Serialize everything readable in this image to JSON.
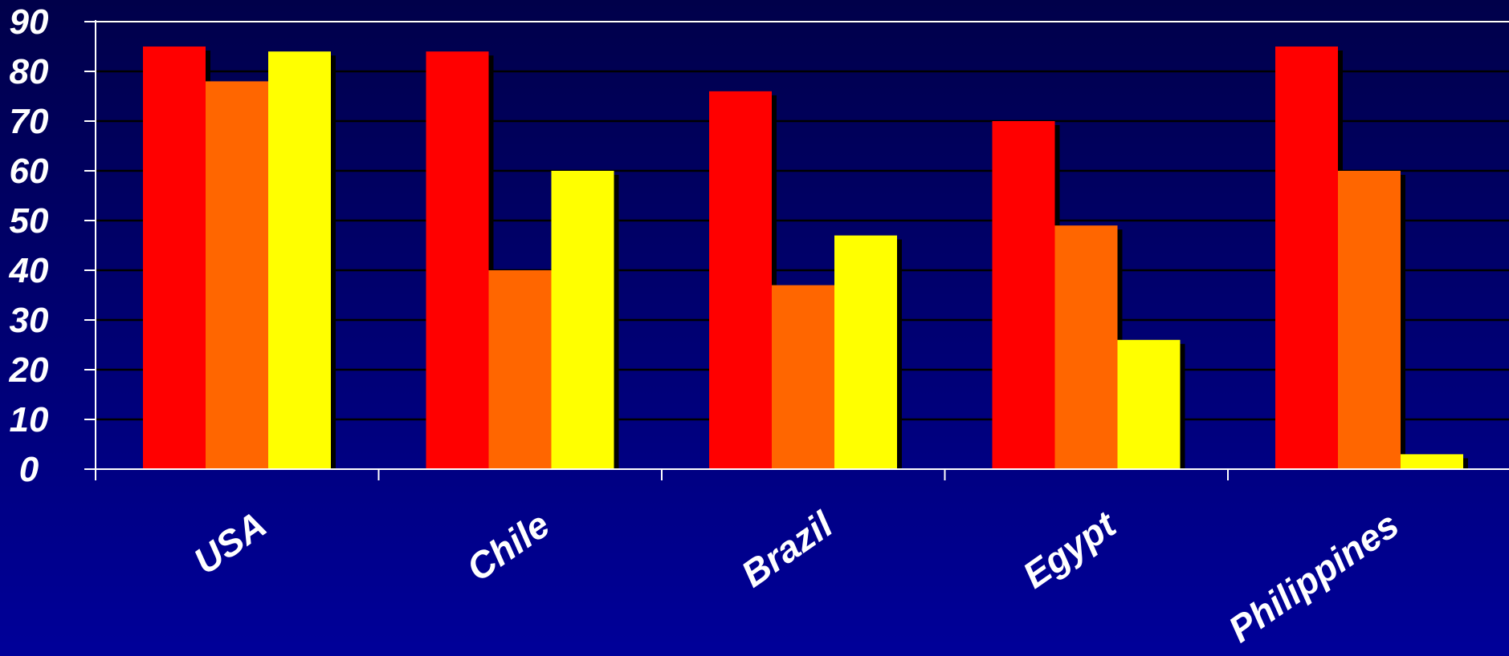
{
  "chart_data": {
    "type": "bar",
    "categories": [
      "USA",
      "Chile",
      "Brazil",
      "Egypt",
      "Philippines"
    ],
    "series": [
      {
        "color": "#ff0000",
        "values": [
          85,
          84,
          76,
          70,
          85
        ]
      },
      {
        "color": "#ff6600",
        "values": [
          78,
          40,
          37,
          49,
          60
        ]
      },
      {
        "color": "#ffff00",
        "values": [
          84,
          60,
          47,
          26,
          3
        ]
      }
    ],
    "ylim": [
      0,
      90
    ],
    "yticks": [
      "0",
      "10",
      "20",
      "30",
      "40",
      "50",
      "60",
      "70",
      "80",
      "90"
    ],
    "grid": true,
    "legend": "none",
    "colors": {
      "background_top": "#00004a",
      "background_bottom": "#000099",
      "gridline": "#000000",
      "axis": "#ffffff",
      "text": "#ffffff"
    }
  }
}
